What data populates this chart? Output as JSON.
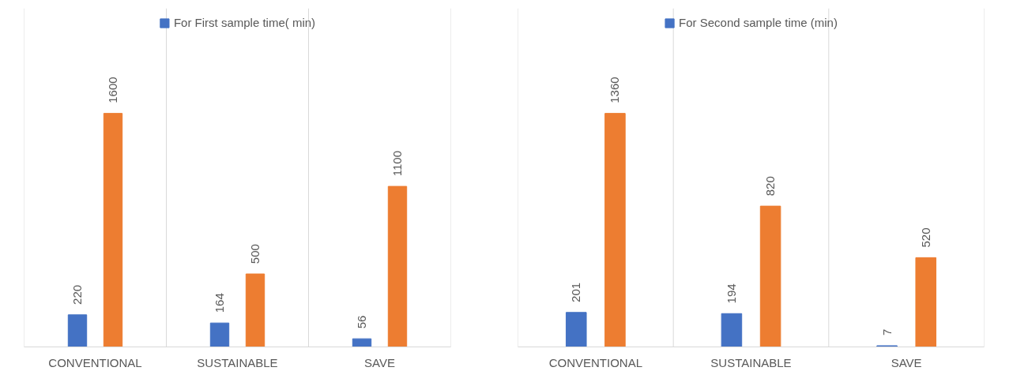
{
  "chart_data": [
    {
      "type": "bar",
      "categories": [
        "CONVENTIONAL",
        "SUSTAINABLE",
        "SAVE"
      ],
      "series": [
        {
          "name": "For First sample time( min)",
          "color": "#4472c4",
          "values": [
            220,
            164,
            56
          ]
        },
        {
          "color": "#ed7d31",
          "values": [
            1600,
            500,
            1100
          ]
        }
      ],
      "data_labels": true,
      "legend": "top",
      "grid": "x"
    },
    {
      "type": "bar",
      "categories": [
        "CONVENTIONAL",
        "SUSTAINABLE",
        "SAVE"
      ],
      "series": [
        {
          "name": "For Second sample time (min)",
          "color": "#4472c4",
          "values": [
            201,
            194,
            7
          ]
        },
        {
          "color": "#ed7d31",
          "values": [
            1360,
            820,
            520
          ]
        }
      ],
      "data_labels": true,
      "legend": "top",
      "grid": "x"
    }
  ]
}
